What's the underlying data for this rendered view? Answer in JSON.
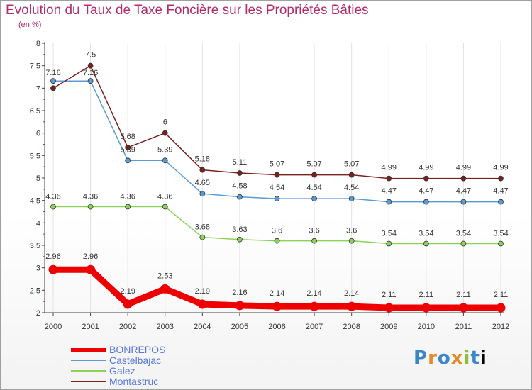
{
  "title": "Evolution du Taux de Taxe Foncière sur les Propriétés Bâties",
  "subtitle": "(en %)",
  "logo_text": "Proxiti",
  "chart_data": {
    "type": "line",
    "title": "Evolution du Taux de Taxe Foncière sur les Propriétés Bâties",
    "ylabel": "(en %)",
    "xlabel": "",
    "ylim": [
      2,
      8
    ],
    "yticks": [
      "2",
      "2.5",
      "3",
      "3.5",
      "4",
      "4.5",
      "5",
      "5.5",
      "6",
      "6.5",
      "7",
      "7.5",
      "8"
    ],
    "categories": [
      "2000",
      "2001",
      "2002",
      "2003",
      "2004",
      "2005",
      "2006",
      "2007",
      "2008",
      "2009",
      "2010",
      "2011",
      "2012"
    ],
    "grid": "vertical",
    "legend_position": "bottom-left",
    "series": [
      {
        "name": "BONREPOS",
        "color": "#ee0000",
        "values": [
          2.96,
          2.96,
          2.19,
          2.53,
          2.19,
          2.16,
          2.14,
          2.14,
          2.14,
          2.11,
          2.11,
          2.11,
          2.11
        ]
      },
      {
        "name": "Castelbajac",
        "color": "#5b9bd5",
        "values": [
          7.16,
          7.16,
          5.39,
          5.39,
          4.65,
          4.58,
          4.54,
          4.54,
          4.54,
          4.47,
          4.47,
          4.47,
          4.47
        ]
      },
      {
        "name": "Galez",
        "color": "#8bd25a",
        "values": [
          4.36,
          4.36,
          4.36,
          4.36,
          3.68,
          3.63,
          3.6,
          3.6,
          3.6,
          3.54,
          3.54,
          3.54,
          3.54
        ]
      },
      {
        "name": "Montastruc",
        "color": "#7a2020",
        "values": [
          7,
          7.5,
          5.68,
          6,
          5.18,
          5.11,
          5.07,
          5.07,
          5.07,
          4.99,
          4.99,
          4.99,
          4.99
        ]
      }
    ],
    "data_labels": {
      "BONREPOS": [
        "2.96",
        "2.96",
        "2.19",
        "2.53",
        "2.19",
        "2.16",
        "2.14",
        "2.14",
        "2.14",
        "2.11",
        "2.11",
        "2.11",
        "2.11"
      ],
      "Castelbajac": [
        "7.16",
        "7.16",
        "5.39",
        "5.39",
        "4.65",
        "4.58",
        "4.54",
        "4.54",
        "4.54",
        "4.47",
        "4.47",
        "4.47",
        "4.47"
      ],
      "Galez": [
        "4.36",
        "4.36",
        "4.36",
        "4.36",
        "3.68",
        "3.63",
        "3.6",
        "3.6",
        "3.6",
        "3.54",
        "3.54",
        "3.54",
        "3.54"
      ],
      "Montastruc": [
        "",
        "7.5",
        "5.68",
        "6",
        "5.18",
        "5.11",
        "5.07",
        "5.07",
        "5.07",
        "4.99",
        "4.99",
        "4.99",
        "4.99"
      ]
    }
  }
}
